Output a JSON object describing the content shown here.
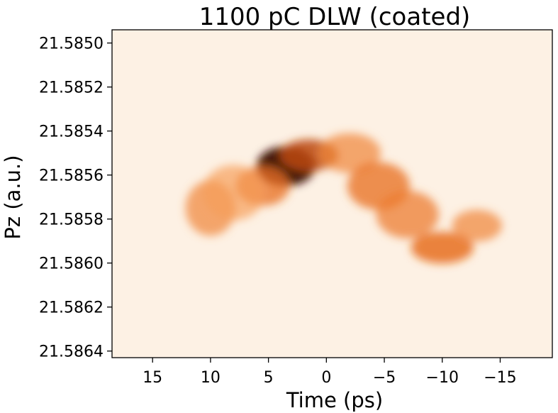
{
  "chart_data": {
    "type": "heatmap",
    "title": "1100 pC DLW (coated)",
    "xlabel": "Time (ps)",
    "ylabel": "Pz (a.u.)",
    "xlim": [
      18.5,
      -19.5
    ],
    "ylim": [
      21.58494,
      21.58643
    ],
    "x_ticks": [
      15,
      10,
      5,
      0,
      -5,
      -10,
      -15
    ],
    "x_tick_labels": [
      "15",
      "10",
      "5",
      "0",
      "−5",
      "−10",
      "−15"
    ],
    "y_ticks": [
      21.585,
      21.5852,
      21.5854,
      21.5856,
      21.5858,
      21.586,
      21.5862,
      21.5864
    ],
    "y_tick_labels": [
      "21.5850",
      "21.5852",
      "21.5854",
      "21.5856",
      "21.5858",
      "21.5860",
      "21.5862",
      "21.5864"
    ],
    "colormap": "Oranges",
    "background_color": "#fdf1e4",
    "grid": false,
    "intensity_blobs": [
      {
        "x": 3.5,
        "y": 21.58556,
        "sx": 1.4,
        "sy": 5e-05,
        "weight": 1.0
      },
      {
        "x": 1.5,
        "y": 21.58551,
        "sx": 1.4,
        "sy": 4e-05,
        "weight": 0.75
      },
      {
        "x": 5.5,
        "y": 21.58565,
        "sx": 1.3,
        "sy": 5e-05,
        "weight": 0.55
      },
      {
        "x": 10.0,
        "y": 21.58575,
        "sx": 1.2,
        "sy": 7e-05,
        "weight": 0.45
      },
      {
        "x": 8.0,
        "y": 21.58568,
        "sx": 1.5,
        "sy": 7e-05,
        "weight": 0.35
      },
      {
        "x": -2.0,
        "y": 21.5855,
        "sx": 1.5,
        "sy": 5e-05,
        "weight": 0.45
      },
      {
        "x": -4.5,
        "y": 21.58565,
        "sx": 1.5,
        "sy": 6e-05,
        "weight": 0.55
      },
      {
        "x": -7.0,
        "y": 21.58578,
        "sx": 1.5,
        "sy": 6e-05,
        "weight": 0.5
      },
      {
        "x": -10.0,
        "y": 21.58593,
        "sx": 1.5,
        "sy": 4e-05,
        "weight": 0.6
      },
      {
        "x": -13.0,
        "y": 21.58583,
        "sx": 1.2,
        "sy": 4e-05,
        "weight": 0.45
      }
    ]
  }
}
